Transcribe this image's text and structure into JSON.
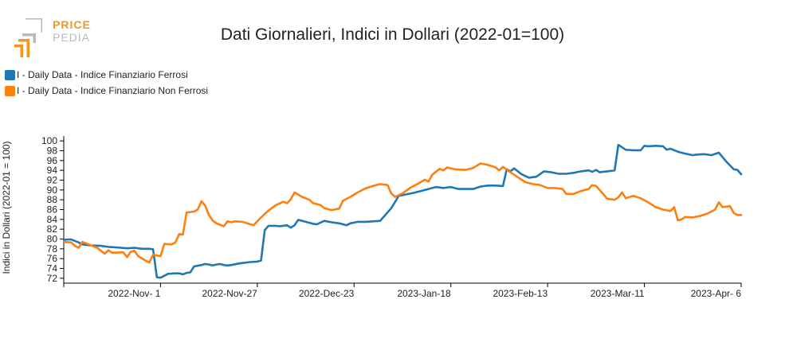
{
  "logo": {
    "line1": "PRICE",
    "line2": "PEDIA",
    "accent": "#f7931e",
    "gray": "#b9b9b9"
  },
  "chart_data": {
    "type": "line",
    "title": "Dati Giornalieri, Indici in Dollari (2022-01=100)",
    "ylabel": "Indici in Dollari (2022-01 = 100)",
    "xlabel": "",
    "ylim": [
      71,
      101
    ],
    "yticks": [
      72,
      74,
      76,
      78,
      80,
      82,
      84,
      86,
      88,
      90,
      92,
      94,
      96,
      98,
      100
    ],
    "xlim": [
      "2022-10-06",
      "2023-04-06"
    ],
    "xticks": [
      {
        "date": "2022-11-01",
        "label": "2022-Nov- 1"
      },
      {
        "date": "2022-11-27",
        "label": "2022-Nov-27"
      },
      {
        "date": "2022-12-23",
        "label": "2022-Dec-23"
      },
      {
        "date": "2023-01-18",
        "label": "2023-Jan-18"
      },
      {
        "date": "2023-02-13",
        "label": "2023-Feb-13"
      },
      {
        "date": "2023-03-11",
        "label": "2023-Mar-11"
      },
      {
        "date": "2023-04-06",
        "label": "2023-Apr- 6"
      }
    ],
    "grid": false,
    "legend_position": "top-left",
    "series": [
      {
        "name": "I - Daily Data - Indice Finanziario Ferrosi",
        "color": "#1f77b4",
        "points": [
          [
            "2022-10-06",
            79.8
          ],
          [
            "2022-10-07",
            79.9
          ],
          [
            "2022-10-08",
            79.9
          ],
          [
            "2022-10-10",
            79.3
          ],
          [
            "2022-10-11",
            78.9
          ],
          [
            "2022-10-13",
            78.7
          ],
          [
            "2022-10-16",
            78.6
          ],
          [
            "2022-10-18",
            78.4
          ],
          [
            "2022-10-20",
            78.3
          ],
          [
            "2022-10-23",
            78.1
          ],
          [
            "2022-10-25",
            78.2
          ],
          [
            "2022-10-27",
            78.0
          ],
          [
            "2022-10-29",
            78.0
          ],
          [
            "2022-10-30",
            77.9
          ],
          [
            "2022-10-31",
            72.2
          ],
          [
            "2022-11-01",
            72.1
          ],
          [
            "2022-11-03",
            72.9
          ],
          [
            "2022-11-05",
            73.0
          ],
          [
            "2022-11-06",
            73.0
          ],
          [
            "2022-11-07",
            72.8
          ],
          [
            "2022-11-08",
            73.1
          ],
          [
            "2022-11-09",
            73.2
          ],
          [
            "2022-11-10",
            74.4
          ],
          [
            "2022-11-12",
            74.7
          ],
          [
            "2022-11-13",
            74.9
          ],
          [
            "2022-11-14",
            74.8
          ],
          [
            "2022-11-15",
            74.6
          ],
          [
            "2022-11-16",
            74.8
          ],
          [
            "2022-11-17",
            74.9
          ],
          [
            "2022-11-18",
            74.7
          ],
          [
            "2022-11-19",
            74.6
          ],
          [
            "2022-11-20",
            74.7
          ],
          [
            "2022-11-22",
            75.0
          ],
          [
            "2022-11-23",
            75.1
          ],
          [
            "2022-11-25",
            75.3
          ],
          [
            "2022-11-27",
            75.4
          ],
          [
            "2022-11-28",
            75.6
          ],
          [
            "2022-11-29",
            81.8
          ],
          [
            "2022-11-30",
            82.7
          ],
          [
            "2022-12-01",
            82.7
          ],
          [
            "2022-12-02",
            82.7
          ],
          [
            "2022-12-03",
            82.6
          ],
          [
            "2022-12-05",
            82.8
          ],
          [
            "2022-12-06",
            82.3
          ],
          [
            "2022-12-07",
            82.8
          ],
          [
            "2022-12-08",
            83.9
          ],
          [
            "2022-12-10",
            83.5
          ],
          [
            "2022-12-12",
            83.1
          ],
          [
            "2022-12-13",
            83.0
          ],
          [
            "2022-12-15",
            83.7
          ],
          [
            "2022-12-17",
            83.4
          ],
          [
            "2022-12-19",
            83.2
          ],
          [
            "2022-12-21",
            82.8
          ],
          [
            "2022-12-22",
            83.2
          ],
          [
            "2022-12-24",
            83.5
          ],
          [
            "2022-12-26",
            83.5
          ],
          [
            "2022-12-28",
            83.6
          ],
          [
            "2022-12-30",
            83.7
          ],
          [
            "2023-01-02",
            86.3
          ],
          [
            "2023-01-04",
            88.8
          ],
          [
            "2023-01-06",
            89.1
          ],
          [
            "2023-01-08",
            89.4
          ],
          [
            "2023-01-10",
            89.8
          ],
          [
            "2023-01-12",
            90.2
          ],
          [
            "2023-01-14",
            90.6
          ],
          [
            "2023-01-16",
            90.4
          ],
          [
            "2023-01-18",
            90.6
          ],
          [
            "2023-01-20",
            90.2
          ],
          [
            "2023-01-22",
            90.2
          ],
          [
            "2023-01-24",
            90.2
          ],
          [
            "2023-01-26",
            90.7
          ],
          [
            "2023-01-28",
            90.9
          ],
          [
            "2023-01-30",
            90.9
          ],
          [
            "2023-02-01",
            90.8
          ],
          [
            "2023-02-02",
            94.2
          ],
          [
            "2023-02-03",
            93.8
          ],
          [
            "2023-02-04",
            94.4
          ],
          [
            "2023-02-06",
            93.2
          ],
          [
            "2023-02-08",
            92.5
          ],
          [
            "2023-02-10",
            92.7
          ],
          [
            "2023-02-12",
            93.8
          ],
          [
            "2023-02-14",
            93.6
          ],
          [
            "2023-02-16",
            93.3
          ],
          [
            "2023-02-18",
            93.3
          ],
          [
            "2023-02-20",
            93.5
          ],
          [
            "2023-02-22",
            93.8
          ],
          [
            "2023-02-24",
            94.0
          ],
          [
            "2023-02-25",
            93.7
          ],
          [
            "2023-02-26",
            94.1
          ],
          [
            "2023-02-27",
            93.6
          ],
          [
            "2023-03-01",
            93.8
          ],
          [
            "2023-03-03",
            94.0
          ],
          [
            "2023-03-04",
            99.2
          ],
          [
            "2023-03-06",
            98.2
          ],
          [
            "2023-03-08",
            98.1
          ],
          [
            "2023-03-10",
            98.1
          ],
          [
            "2023-03-11",
            99.0
          ],
          [
            "2023-03-12",
            98.9
          ],
          [
            "2023-03-14",
            99.0
          ],
          [
            "2023-03-16",
            98.9
          ],
          [
            "2023-03-17",
            98.2
          ],
          [
            "2023-03-18",
            98.4
          ],
          [
            "2023-03-20",
            97.8
          ],
          [
            "2023-03-22",
            97.4
          ],
          [
            "2023-03-24",
            97.1
          ],
          [
            "2023-03-25",
            97.2
          ],
          [
            "2023-03-27",
            97.3
          ],
          [
            "2023-03-29",
            97.1
          ],
          [
            "2023-03-31",
            97.6
          ],
          [
            "2023-04-02",
            95.8
          ],
          [
            "2023-04-04",
            94.2
          ],
          [
            "2023-04-05",
            94.1
          ],
          [
            "2023-04-06",
            93.2
          ]
        ]
      },
      {
        "name": "I - Daily Data - Indice Finanziario Non Ferrosi",
        "color": "#ff7f0e",
        "points": [
          [
            "2022-10-06",
            79.4
          ],
          [
            "2022-10-08",
            79.3
          ],
          [
            "2022-10-09",
            78.6
          ],
          [
            "2022-10-10",
            78.2
          ],
          [
            "2022-10-11",
            79.4
          ],
          [
            "2022-10-13",
            78.8
          ],
          [
            "2022-10-15",
            78.2
          ],
          [
            "2022-10-17",
            77.0
          ],
          [
            "2022-10-18",
            77.7
          ],
          [
            "2022-10-19",
            77.2
          ],
          [
            "2022-10-22",
            77.3
          ],
          [
            "2022-10-23",
            76.3
          ],
          [
            "2022-10-24",
            77.4
          ],
          [
            "2022-10-25",
            77.6
          ],
          [
            "2022-10-26",
            76.5
          ],
          [
            "2022-10-28",
            75.6
          ],
          [
            "2022-10-29",
            75.2
          ],
          [
            "2022-10-30",
            76.8
          ],
          [
            "2022-11-01",
            76.5
          ],
          [
            "2022-11-02",
            79.0
          ],
          [
            "2022-11-04",
            78.9
          ],
          [
            "2022-11-05",
            79.3
          ],
          [
            "2022-11-06",
            81.0
          ],
          [
            "2022-11-07",
            80.9
          ],
          [
            "2022-11-08",
            85.4
          ],
          [
            "2022-11-10",
            85.6
          ],
          [
            "2022-11-11",
            86.0
          ],
          [
            "2022-11-12",
            87.7
          ],
          [
            "2022-11-13",
            86.8
          ],
          [
            "2022-11-14",
            84.9
          ],
          [
            "2022-11-15",
            83.8
          ],
          [
            "2022-11-16",
            83.2
          ],
          [
            "2022-11-18",
            82.6
          ],
          [
            "2022-11-19",
            83.6
          ],
          [
            "2022-11-20",
            83.4
          ],
          [
            "2022-11-21",
            83.6
          ],
          [
            "2022-11-23",
            83.5
          ],
          [
            "2022-11-26",
            82.8
          ],
          [
            "2022-11-28",
            84.4
          ],
          [
            "2022-11-30",
            85.8
          ],
          [
            "2022-12-02",
            86.9
          ],
          [
            "2022-12-04",
            87.6
          ],
          [
            "2022-12-05",
            87.3
          ],
          [
            "2022-12-06",
            88.1
          ],
          [
            "2022-12-07",
            89.5
          ],
          [
            "2022-12-09",
            88.6
          ],
          [
            "2022-12-11",
            88.0
          ],
          [
            "2022-12-12",
            87.3
          ],
          [
            "2022-12-14",
            86.9
          ],
          [
            "2022-12-15",
            86.3
          ],
          [
            "2022-12-17",
            85.9
          ],
          [
            "2022-12-19",
            86.2
          ],
          [
            "2022-12-20",
            87.8
          ],
          [
            "2022-12-22",
            88.6
          ],
          [
            "2022-12-24",
            89.5
          ],
          [
            "2022-12-26",
            90.3
          ],
          [
            "2022-12-28",
            90.8
          ],
          [
            "2022-12-30",
            91.2
          ],
          [
            "2023-01-01",
            91.0
          ],
          [
            "2023-01-02",
            89.3
          ],
          [
            "2023-01-03",
            88.6
          ],
          [
            "2023-01-05",
            89.3
          ],
          [
            "2023-01-07",
            90.4
          ],
          [
            "2023-01-09",
            91.2
          ],
          [
            "2023-01-11",
            92.1
          ],
          [
            "2023-01-12",
            91.7
          ],
          [
            "2023-01-13",
            93.1
          ],
          [
            "2023-01-15",
            94.3
          ],
          [
            "2023-01-16",
            94.0
          ],
          [
            "2023-01-17",
            94.6
          ],
          [
            "2023-01-19",
            94.2
          ],
          [
            "2023-01-22",
            94.1
          ],
          [
            "2023-01-24",
            94.5
          ],
          [
            "2023-01-26",
            95.4
          ],
          [
            "2023-01-28",
            95.1
          ],
          [
            "2023-01-30",
            94.6
          ],
          [
            "2023-01-31",
            94.0
          ],
          [
            "2023-02-01",
            94.7
          ],
          [
            "2023-02-03",
            93.6
          ],
          [
            "2023-02-05",
            92.6
          ],
          [
            "2023-02-07",
            91.6
          ],
          [
            "2023-02-09",
            91.2
          ],
          [
            "2023-02-11",
            91.0
          ],
          [
            "2023-02-13",
            90.4
          ],
          [
            "2023-02-15",
            90.4
          ],
          [
            "2023-02-17",
            90.2
          ],
          [
            "2023-02-18",
            89.2
          ],
          [
            "2023-02-20",
            89.2
          ],
          [
            "2023-02-22",
            89.8
          ],
          [
            "2023-02-24",
            90.2
          ],
          [
            "2023-02-25",
            91.0
          ],
          [
            "2023-02-26",
            90.8
          ],
          [
            "2023-02-27",
            90.0
          ],
          [
            "2023-03-01",
            88.2
          ],
          [
            "2023-03-03",
            88.0
          ],
          [
            "2023-03-04",
            88.5
          ],
          [
            "2023-03-05",
            89.5
          ],
          [
            "2023-03-06",
            88.3
          ],
          [
            "2023-03-08",
            88.8
          ],
          [
            "2023-03-10",
            88.3
          ],
          [
            "2023-03-12",
            87.5
          ],
          [
            "2023-03-14",
            86.5
          ],
          [
            "2023-03-16",
            86.0
          ],
          [
            "2023-03-18",
            85.7
          ],
          [
            "2023-03-19",
            86.5
          ],
          [
            "2023-03-20",
            83.8
          ],
          [
            "2023-03-21",
            84.0
          ],
          [
            "2023-03-22",
            84.5
          ],
          [
            "2023-03-24",
            84.4
          ],
          [
            "2023-03-26",
            84.7
          ],
          [
            "2023-03-28",
            85.2
          ],
          [
            "2023-03-30",
            86.0
          ],
          [
            "2023-03-31",
            87.5
          ],
          [
            "2023-04-01",
            86.5
          ],
          [
            "2023-04-03",
            86.7
          ],
          [
            "2023-04-04",
            85.3
          ],
          [
            "2023-04-05",
            84.9
          ],
          [
            "2023-04-06",
            84.9
          ]
        ]
      }
    ]
  }
}
